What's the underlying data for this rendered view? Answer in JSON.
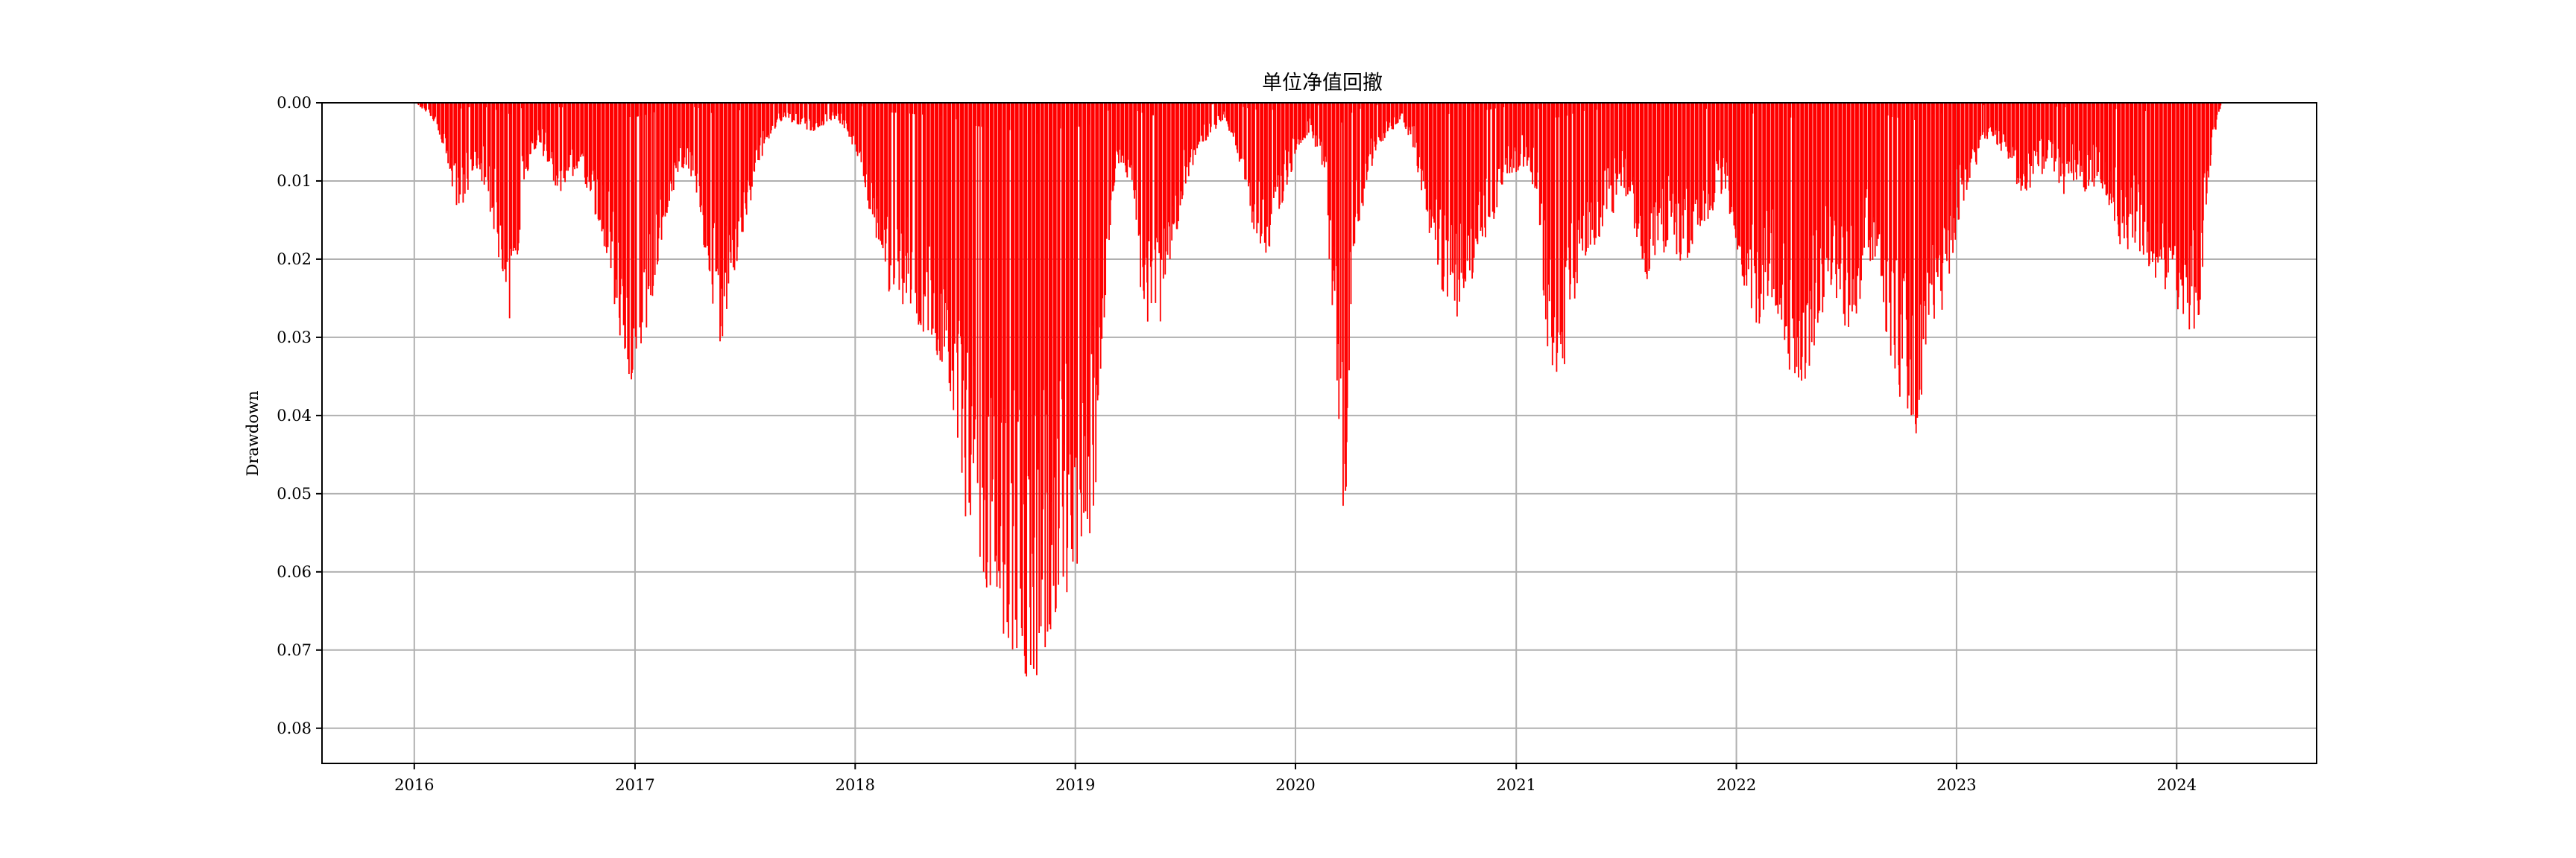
{
  "chart_data": {
    "type": "bar",
    "title": "单位净值回撤",
    "xlabel": "",
    "ylabel": "Drawdown",
    "y_inverted": true,
    "ylim": [
      0.0845,
      0.0
    ],
    "xlim": [
      "2015-08-01",
      "2024-08-20"
    ],
    "grid": true,
    "bar_color": "#ff0000",
    "x_ticks": [
      "2016",
      "2017",
      "2018",
      "2019",
      "2020",
      "2021",
      "2022",
      "2023",
      "2024"
    ],
    "y_ticks": [
      "0.00",
      "0.01",
      "0.02",
      "0.03",
      "0.04",
      "0.05",
      "0.06",
      "0.07",
      "0.08"
    ],
    "envelope": {
      "x": [
        "2016-01-04",
        "2016-01-29",
        "2016-02-20",
        "2016-03-05",
        "2016-03-20",
        "2016-04-10",
        "2016-05-01",
        "2016-05-20",
        "2016-06-10",
        "2016-07-01",
        "2016-07-25",
        "2016-08-15",
        "2016-09-05",
        "2016-10-01",
        "2016-10-25",
        "2016-11-15",
        "2016-12-05",
        "2016-12-28",
        "2017-01-20",
        "2017-02-10",
        "2017-03-05",
        "2017-03-25",
        "2017-04-15",
        "2017-05-05",
        "2017-05-25",
        "2017-06-15",
        "2017-07-05",
        "2017-07-25",
        "2017-08-15",
        "2017-09-05",
        "2017-09-30",
        "2017-10-20",
        "2017-11-10",
        "2017-12-01",
        "2017-12-20",
        "2018-01-10",
        "2018-01-28",
        "2018-02-10",
        "2018-03-01",
        "2018-03-25",
        "2018-04-15",
        "2018-05-05",
        "2018-05-25",
        "2018-06-15",
        "2018-07-05",
        "2018-07-25",
        "2018-08-15",
        "2018-09-05",
        "2018-09-25",
        "2018-10-15",
        "2018-10-28",
        "2018-11-15",
        "2018-12-05",
        "2018-12-25",
        "2019-01-15",
        "2019-02-05",
        "2019-02-20",
        "2019-03-10",
        "2019-04-01",
        "2019-04-20",
        "2019-05-10",
        "2019-05-25",
        "2019-06-15",
        "2019-07-05",
        "2019-07-25",
        "2019-08-15",
        "2019-09-05",
        "2019-09-25",
        "2019-10-15",
        "2019-11-05",
        "2019-11-25",
        "2019-12-15",
        "2020-01-05",
        "2020-01-25",
        "2020-02-05",
        "2020-02-20",
        "2020-03-10",
        "2020-03-23",
        "2020-04-05",
        "2020-04-25",
        "2020-05-15",
        "2020-06-05",
        "2020-06-25",
        "2020-07-15",
        "2020-08-05",
        "2020-08-25",
        "2020-09-15",
        "2020-10-05",
        "2020-10-25",
        "2020-11-15",
        "2020-12-05",
        "2020-12-25",
        "2021-01-15",
        "2021-02-05",
        "2021-02-20",
        "2021-03-05",
        "2021-03-20",
        "2021-04-05",
        "2021-04-25",
        "2021-05-15",
        "2021-06-05",
        "2021-06-25",
        "2021-07-15",
        "2021-08-05",
        "2021-08-25",
        "2021-09-15",
        "2021-10-05",
        "2021-10-25",
        "2021-11-15",
        "2021-12-05",
        "2021-12-25",
        "2022-01-15",
        "2022-02-05",
        "2022-02-25",
        "2022-03-15",
        "2022-04-05",
        "2022-04-25",
        "2022-05-15",
        "2022-06-05",
        "2022-06-25",
        "2022-07-15",
        "2022-08-05",
        "2022-08-25",
        "2022-09-15",
        "2022-10-05",
        "2022-10-25",
        "2022-11-15",
        "2022-12-05",
        "2022-12-25",
        "2023-01-15",
        "2023-02-05",
        "2023-02-25",
        "2023-03-15",
        "2023-04-05",
        "2023-04-25",
        "2023-05-15",
        "2023-06-05",
        "2023-06-25",
        "2023-07-15",
        "2023-08-05",
        "2023-08-25",
        "2023-09-15",
        "2023-10-05",
        "2023-10-25",
        "2023-11-15",
        "2023-12-05",
        "2023-12-25",
        "2024-01-15",
        "2024-02-05",
        "2024-02-20",
        "2024-03-05",
        "2024-03-15"
      ],
      "y": [
        0.0,
        0.002,
        0.006,
        0.012,
        0.015,
        0.008,
        0.012,
        0.02,
        0.03,
        0.01,
        0.005,
        0.01,
        0.012,
        0.008,
        0.014,
        0.02,
        0.03,
        0.038,
        0.03,
        0.02,
        0.012,
        0.008,
        0.012,
        0.025,
        0.032,
        0.022,
        0.015,
        0.008,
        0.004,
        0.002,
        0.003,
        0.004,
        0.003,
        0.002,
        0.004,
        0.008,
        0.016,
        0.02,
        0.025,
        0.026,
        0.03,
        0.03,
        0.034,
        0.04,
        0.056,
        0.06,
        0.066,
        0.068,
        0.072,
        0.074,
        0.08,
        0.07,
        0.066,
        0.063,
        0.06,
        0.05,
        0.025,
        0.008,
        0.01,
        0.025,
        0.032,
        0.028,
        0.018,
        0.01,
        0.006,
        0.004,
        0.002,
        0.006,
        0.014,
        0.02,
        0.018,
        0.012,
        0.006,
        0.004,
        0.006,
        0.01,
        0.042,
        0.056,
        0.02,
        0.012,
        0.006,
        0.004,
        0.002,
        0.006,
        0.015,
        0.022,
        0.03,
        0.025,
        0.022,
        0.018,
        0.012,
        0.01,
        0.008,
        0.012,
        0.03,
        0.038,
        0.036,
        0.028,
        0.02,
        0.018,
        0.015,
        0.012,
        0.016,
        0.024,
        0.02,
        0.018,
        0.022,
        0.018,
        0.015,
        0.012,
        0.015,
        0.024,
        0.03,
        0.024,
        0.028,
        0.04,
        0.036,
        0.03,
        0.024,
        0.028,
        0.03,
        0.02,
        0.024,
        0.036,
        0.04,
        0.044,
        0.03,
        0.028,
        0.02,
        0.012,
        0.008,
        0.004,
        0.006,
        0.01,
        0.012,
        0.01,
        0.008,
        0.012,
        0.01,
        0.012,
        0.01,
        0.014,
        0.02,
        0.018,
        0.022,
        0.024,
        0.026,
        0.028,
        0.032,
        0.012,
        0.004,
        0.0
      ]
    }
  }
}
